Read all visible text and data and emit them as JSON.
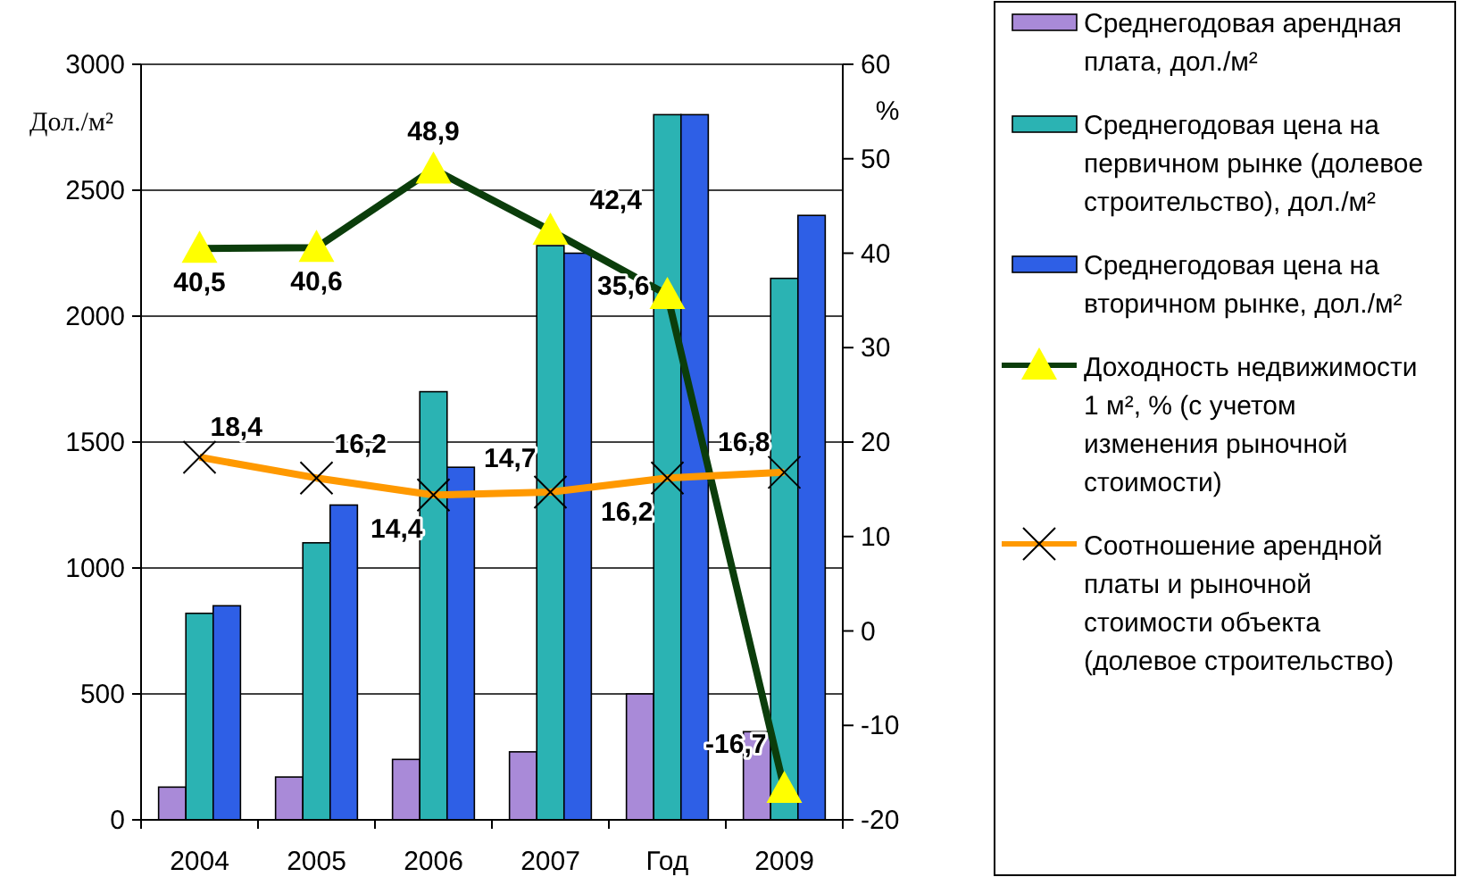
{
  "chart_data": {
    "type": "bar",
    "ylabel": "Дол./м²",
    "y2label": "%",
    "categories": [
      "2004",
      "2005",
      "2006",
      "2007",
      "Год",
      "2009"
    ],
    "series": [
      {
        "name": "Среднегодовая арендная плата, дол./м²",
        "color": "#a98ad8",
        "values": [
          130,
          170,
          240,
          270,
          500,
          350
        ]
      },
      {
        "name": "Среднегодовая цена на первичном рынке (долевое строительство), дол./м²",
        "color": "#2bb3b3",
        "values": [
          820,
          1100,
          1700,
          2280,
          2800,
          2150
        ]
      },
      {
        "name": "Среднегодовая цена на вторичном рынке, дол./м²",
        "color": "#2e5fe6",
        "values": [
          850,
          1250,
          1400,
          2250,
          2800,
          2400
        ]
      },
      {
        "name": "Доходность недвижимости 1 м², % (с учетом изменения рыночной стоимости)",
        "type": "line",
        "axis": "y2",
        "color": "#0b3d0b",
        "marker": "triangle",
        "values": [
          40.5,
          40.6,
          48.9,
          42.4,
          35.6,
          -16.7
        ],
        "value_labels": [
          "40,5",
          "40,6",
          "48,9",
          "42,4",
          "35,6",
          "-16,7"
        ]
      },
      {
        "name": "Соотношение арендной платы и рыночной стоимости объекта (долевое строительство)",
        "type": "line",
        "axis": "y2",
        "color": "#ff9900",
        "marker": "cross",
        "values": [
          18.4,
          16.2,
          14.4,
          14.7,
          16.2,
          16.8
        ],
        "value_labels": [
          "18,4",
          "16,2",
          "14,4",
          "14,7",
          "16,2",
          "16,8"
        ]
      }
    ],
    "ylim": [
      0,
      3000
    ],
    "yticks": [
      0,
      500,
      1000,
      1500,
      2000,
      2500,
      3000
    ],
    "y2lim": [
      -20,
      60
    ],
    "y2ticks": [
      -20,
      -10,
      0,
      10,
      20,
      30,
      40,
      50,
      60
    ],
    "grid": "y",
    "legend": "right"
  }
}
